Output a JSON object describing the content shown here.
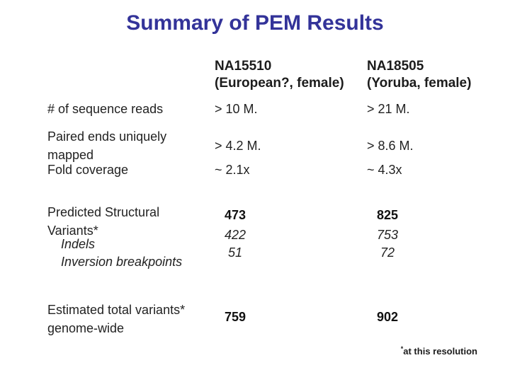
{
  "slide": {
    "title": "Summary of PEM Results",
    "footnote": {
      "star": "*",
      "text": "at this resolution"
    }
  },
  "colors": {
    "title_blue": "#333399",
    "body_text": "#222222",
    "background": "#ffffff"
  },
  "table": {
    "col_headers": [
      {
        "line1": "NA15510",
        "line2": "(European?, female)"
      },
      {
        "line1": "NA18505",
        "line2": "(Yoruba, female)"
      }
    ],
    "rows": [
      {
        "label": "# of sequence reads",
        "values": [
          "> 10 M.",
          "> 21 M."
        ],
        "style": "normal"
      },
      {
        "label_lines": [
          "Paired ends uniquely",
          "mapped"
        ],
        "values": [
          "> 4.2 M.",
          "> 8.6 M."
        ],
        "style": "normal"
      },
      {
        "label": "Fold coverage",
        "values": [
          "~ 2.1x",
          "~ 4.3x"
        ],
        "style": "normal"
      },
      {
        "label_lines": [
          "Predicted Structural",
          "Variants*"
        ],
        "values": [
          "473",
          "825"
        ],
        "style": "bold"
      },
      {
        "label": "Indels",
        "values": [
          "422",
          "753"
        ],
        "style": "italic"
      },
      {
        "label": "Inversion breakpoints",
        "values": [
          "51",
          "72"
        ],
        "style": "italic"
      },
      {
        "label_lines": [
          "Estimated total variants*",
          "genome-wide"
        ],
        "values": [
          "759",
          "902"
        ],
        "style": "bold"
      }
    ]
  }
}
